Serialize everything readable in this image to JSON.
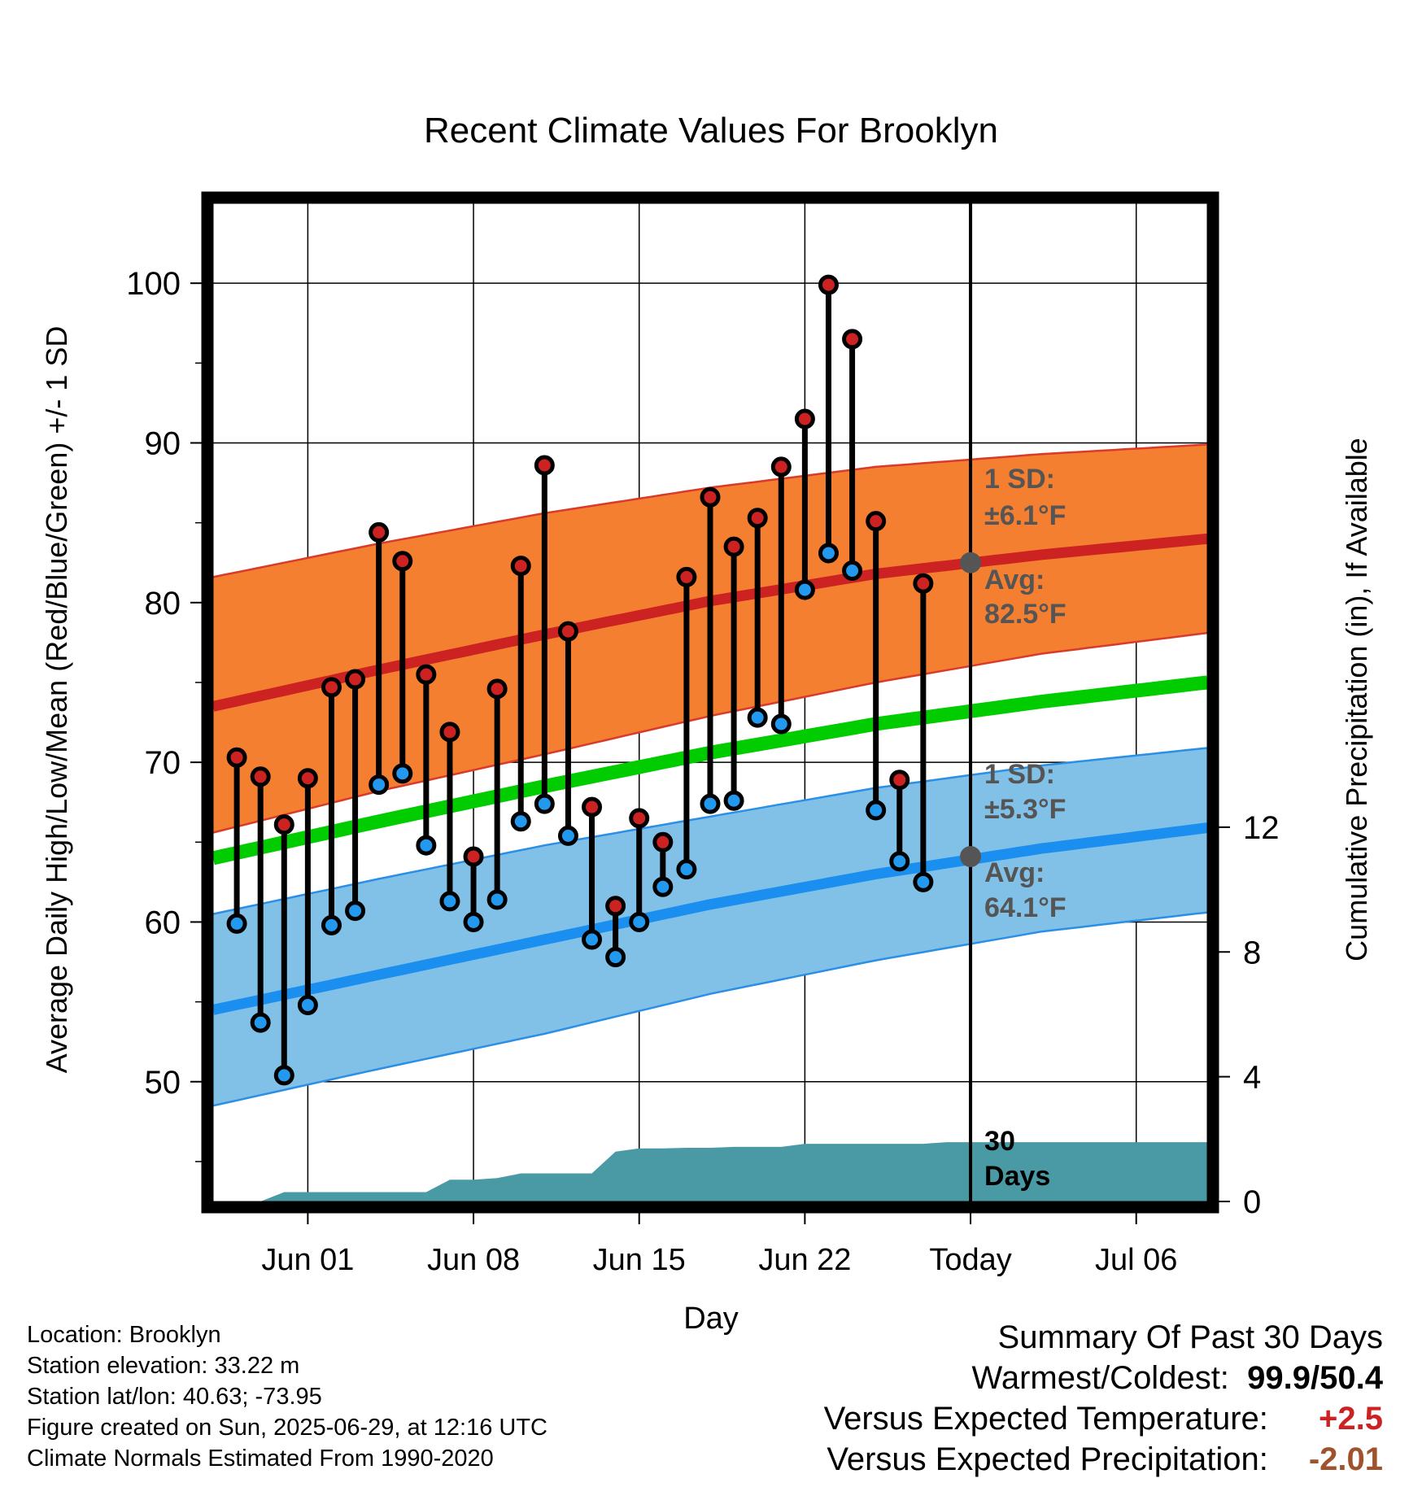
{
  "chart_data": {
    "type": "line",
    "title": "Recent Climate Values For Brooklyn",
    "xlabel": "Day",
    "ylabel": "Average Daily High/Low/Mean (Red/Blue/Green) +/- 1 SD",
    "ylabel_right": "Cumulative Precipitation (in), If Available",
    "xlim": [
      "May 28",
      "Jul 09"
    ],
    "ylim": [
      42.5,
      105
    ],
    "ylim_right": [
      0,
      32
    ],
    "x_ticks": [
      "Jun 01",
      "Jun 08",
      "Jun 15",
      "Jun 22",
      "Today",
      "Jul 06"
    ],
    "y_ticks": [
      50,
      60,
      70,
      80,
      90,
      100
    ],
    "y_ticks_right": [
      0,
      4,
      8,
      12
    ],
    "grid": true,
    "x": [
      "May 29",
      "May 30",
      "May 31",
      "Jun 01",
      "Jun 02",
      "Jun 03",
      "Jun 04",
      "Jun 05",
      "Jun 06",
      "Jun 07",
      "Jun 08",
      "Jun 09",
      "Jun 10",
      "Jun 11",
      "Jun 12",
      "Jun 13",
      "Jun 14",
      "Jun 15",
      "Jun 16",
      "Jun 17",
      "Jun 18",
      "Jun 19",
      "Jun 20",
      "Jun 21",
      "Jun 22",
      "Jun 23",
      "Jun 24",
      "Jun 25",
      "Jun 26",
      "Jun 27",
      "Jun 28"
    ],
    "series": [
      {
        "name": "Daily High",
        "color": "#cc2222",
        "values": [
          70.3,
          69.1,
          66.1,
          69.0,
          74.7,
          75.2,
          84.4,
          82.6,
          75.5,
          71.9,
          64.1,
          74.6,
          82.3,
          88.6,
          78.2,
          67.2,
          61.0,
          66.5,
          65.0,
          81.6,
          86.6,
          83.5,
          85.3,
          88.5,
          91.5,
          99.9,
          96.5,
          85.1,
          68.9,
          81.2,
          null
        ]
      },
      {
        "name": "Daily Low",
        "color": "#2299ee",
        "values": [
          59.9,
          53.7,
          50.4,
          54.8,
          59.8,
          60.7,
          68.6,
          69.3,
          64.8,
          61.3,
          60.0,
          61.4,
          66.3,
          67.4,
          65.4,
          58.9,
          57.8,
          60.0,
          62.2,
          63.3,
          67.4,
          67.6,
          72.8,
          72.4,
          80.8,
          83.1,
          82.0,
          67.0,
          63.8,
          62.5,
          null
        ]
      }
    ],
    "normals": {
      "x": [
        "May 28",
        "Jun 04",
        "Jun 11",
        "Jun 18",
        "Jun 25",
        "Jul 02",
        "Jul 09"
      ],
      "high_avg": [
        73.5,
        75.8,
        78.0,
        80.1,
        81.8,
        83.0,
        84.0
      ],
      "high_upper": [
        81.6,
        83.7,
        85.6,
        87.2,
        88.5,
        89.3,
        89.9
      ],
      "high_lower": [
        65.6,
        68.2,
        70.5,
        72.9,
        75.0,
        76.8,
        78.1
      ],
      "mean_avg": [
        64.0,
        66.3,
        68.5,
        70.6,
        72.4,
        73.8,
        75.0
      ],
      "low_avg": [
        54.5,
        56.7,
        58.9,
        61.1,
        63.0,
        64.6,
        65.9
      ],
      "low_upper": [
        60.5,
        62.7,
        64.8,
        66.6,
        68.4,
        69.8,
        70.9
      ],
      "low_lower": [
        48.5,
        50.8,
        53.0,
        55.5,
        57.6,
        59.4,
        60.6
      ]
    },
    "precip_cumulative": {
      "x": [
        "May 29",
        "May 30",
        "May 31",
        "Jun 01",
        "Jun 02",
        "Jun 03",
        "Jun 04",
        "Jun 05",
        "Jun 06",
        "Jun 07",
        "Jun 08",
        "Jun 09",
        "Jun 10",
        "Jun 11",
        "Jun 12",
        "Jun 13",
        "Jun 14",
        "Jun 15",
        "Jun 16",
        "Jun 17",
        "Jun 18",
        "Jun 19",
        "Jun 20",
        "Jun 21",
        "Jun 22",
        "Jun 23",
        "Jun 24",
        "Jun 25",
        "Jun 26",
        "Jun 27",
        "Jun 28",
        "Jun 29",
        "Jul 09"
      ],
      "values": [
        0.0,
        0.0,
        0.3,
        0.3,
        0.3,
        0.3,
        0.3,
        0.3,
        0.3,
        0.7,
        0.7,
        0.75,
        0.9,
        0.9,
        0.9,
        0.9,
        1.6,
        1.7,
        1.7,
        1.72,
        1.72,
        1.75,
        1.75,
        1.75,
        1.85,
        1.85,
        1.85,
        1.85,
        1.85,
        1.85,
        1.9,
        1.9,
        1.9
      ],
      "color": "#4a9aa5"
    },
    "annotations": {
      "high_sd_line1": "1 SD:",
      "high_sd_line2": "±6.1°F",
      "high_avg_line1": "Avg:",
      "high_avg_line2": "82.5°F",
      "low_sd_line1": "1 SD:",
      "low_sd_line2": "±5.3°F",
      "low_avg_line1": "Avg:",
      "low_avg_line2": "64.1°F",
      "days_line1": "30",
      "days_line2": "Days"
    },
    "today_markers": {
      "high_avg": 82.5,
      "low_avg": 64.1
    }
  },
  "station_info": [
    "Location: Brooklyn",
    "Station elevation: 33.22 m",
    "Station lat/lon: 40.63; -73.95",
    "Figure created on Sun, 2025-06-29, at 12:16 UTC",
    "Climate Normals Estimated From 1990-2020"
  ],
  "summary": {
    "title": "Summary Of Past 30 Days",
    "warm_cold_label": "Warmest/Coldest:",
    "warmest": "99.9",
    "separator": "/",
    "coldest": "50.4",
    "temp_label": "Versus Expected Temperature:",
    "temp_value": "+2.5",
    "temp_color": "#cc2222",
    "precip_label": "Versus Expected Precipitation:",
    "precip_value": "-2.01",
    "precip_color": "#a0522d"
  }
}
